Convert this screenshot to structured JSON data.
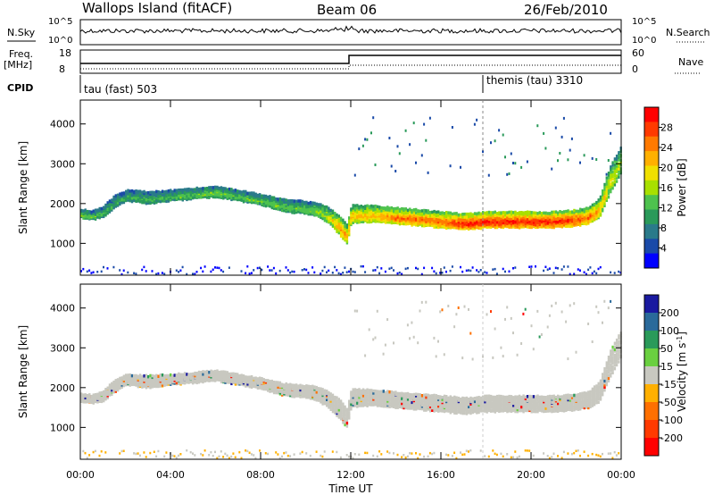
{
  "header": {
    "station": "Wallops Island (fitACF)",
    "beam": "Beam 06",
    "date": "26/Feb/2010"
  },
  "top_panels": {
    "nsky_label": "N.Sky",
    "nsearch_label": "N.Search",
    "freq_label_1": "Freq.",
    "freq_label_2": "[MHz]",
    "nave_label": "Nave",
    "cpid_label": "CPID",
    "nsky_ticks": [
      "10^5",
      "10^0"
    ],
    "nsearch_ticks": [
      "10^5",
      "10^0"
    ],
    "freq_ticks": [
      "18",
      "8"
    ],
    "nave_ticks": [
      "60",
      "0"
    ],
    "cpid_segments": [
      {
        "label": "tau (fast) 503",
        "start_hour": 0
      },
      {
        "label": "themis (tau) 3310",
        "start_hour": 18
      }
    ]
  },
  "chart_data": [
    {
      "type": "heatmap",
      "title": "",
      "xlabel": "",
      "ylabel": "Slant Range [km]",
      "xlim": [
        0,
        24
      ],
      "ylim": [
        200,
        4600
      ],
      "x_ticks": [
        0,
        4,
        8,
        12,
        16,
        20,
        24
      ],
      "y_ticks": [
        1000,
        2000,
        3000,
        4000
      ],
      "colorbar": {
        "label": "Power [dB]",
        "tick_labels": [
          "28",
          "24",
          "20",
          "16",
          "12",
          "8",
          "4"
        ],
        "colors": [
          "#ff0000",
          "#ff3a00",
          "#ff7a00",
          "#ffb000",
          "#f0e000",
          "#a8e000",
          "#4ec24e",
          "#2a9a5a",
          "#2a7a8a",
          "#1a4aa8",
          "#0000ff"
        ]
      },
      "echo_band": {
        "hours": [
          0,
          0.5,
          1,
          1.5,
          2,
          3,
          4,
          5,
          6,
          7,
          8,
          9,
          10,
          10.5,
          11,
          11.5,
          11.8,
          12,
          13,
          14,
          15,
          16,
          17,
          18,
          19,
          20,
          21,
          22,
          22.5,
          23,
          23.5,
          24
        ],
        "center_km": [
          1800,
          1750,
          1850,
          2100,
          2250,
          2200,
          2250,
          2300,
          2350,
          2250,
          2150,
          2000,
          1950,
          1900,
          1750,
          1500,
          1300,
          1800,
          1800,
          1750,
          1700,
          1650,
          1600,
          1650,
          1650,
          1650,
          1650,
          1700,
          1750,
          1950,
          2700,
          3200
        ],
        "width_km": [
          200,
          200,
          250,
          300,
          250,
          300,
          250,
          250,
          250,
          250,
          250,
          300,
          300,
          350,
          400,
          500,
          500,
          450,
          400,
          400,
          400,
          400,
          400,
          400,
          400,
          400,
          400,
          400,
          400,
          500,
          700,
          700
        ],
        "peak_db": [
          14,
          12,
          10,
          10,
          10,
          10,
          11,
          12,
          13,
          12,
          12,
          12,
          12,
          14,
          16,
          22,
          20,
          20,
          20,
          24,
          24,
          24,
          28,
          28,
          28,
          28,
          28,
          26,
          24,
          20,
          16,
          14
        ]
      }
    },
    {
      "type": "heatmap",
      "title": "",
      "xlabel": "Time UT",
      "ylabel": "Slant Range [km]",
      "xlim": [
        0,
        24
      ],
      "ylim": [
        200,
        4600
      ],
      "x_ticks": [
        0,
        4,
        8,
        12,
        16,
        20,
        24
      ],
      "x_tick_labels": [
        "00:00",
        "04:00",
        "08:00",
        "12:00",
        "16:00",
        "20:00",
        "00:00"
      ],
      "y_ticks": [
        1000,
        2000,
        3000,
        4000
      ],
      "colorbar": {
        "label": "Velocity [m s^-1]",
        "tick_labels": [
          "200",
          "100",
          "50",
          "15",
          "-15",
          "-50",
          "-100",
          "-200"
        ],
        "colors": [
          "#1a1aa0",
          "#2a6a9a",
          "#2a9a5a",
          "#6ad040",
          "#c8c8c0",
          "#ffb000",
          "#ff7000",
          "#ff3a00",
          "#ff0000"
        ]
      },
      "dominant_class": "ground scatter (grey)"
    }
  ]
}
